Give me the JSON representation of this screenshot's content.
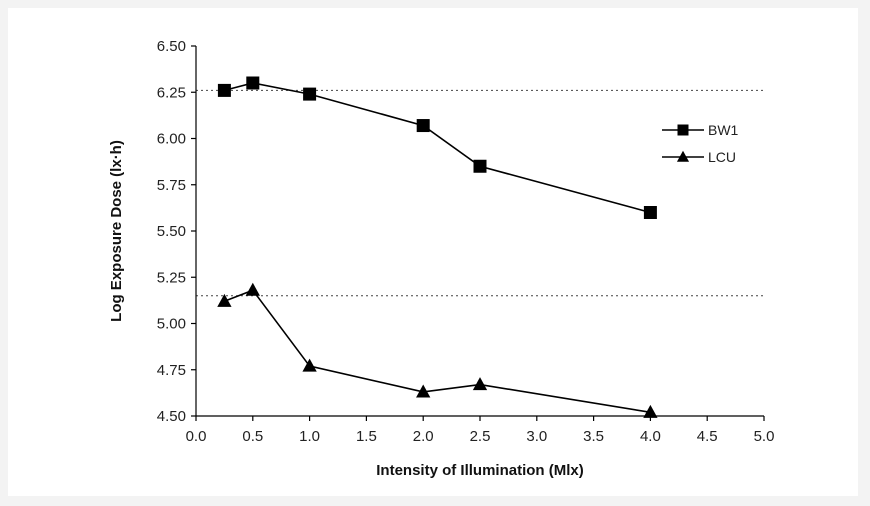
{
  "chart_data": {
    "type": "line",
    "xlabel": "Intensity of Illumination (Mlx)",
    "ylabel": "Log Exposure Dose (lx·h)",
    "xlim": [
      0.0,
      5.0
    ],
    "ylim": [
      4.5,
      6.5
    ],
    "x_ticks": [
      "0.0",
      "0.5",
      "1.0",
      "1.5",
      "2.0",
      "2.5",
      "3.0",
      "3.5",
      "4.0",
      "4.5",
      "5.0"
    ],
    "y_ticks": [
      "4.50",
      "4.75",
      "5.00",
      "5.25",
      "5.50",
      "5.75",
      "6.00",
      "6.25",
      "6.50"
    ],
    "grid": false,
    "legend_position": "right",
    "reference_lines": [
      {
        "y": 6.26
      },
      {
        "y": 5.15
      }
    ],
    "series": [
      {
        "name": "BW1",
        "marker": "square",
        "x": [
          0.25,
          0.5,
          1.0,
          2.0,
          2.5,
          4.0
        ],
        "y": [
          6.26,
          6.3,
          6.24,
          6.07,
          5.85,
          5.6
        ]
      },
      {
        "name": "LCU",
        "marker": "triangle",
        "x": [
          0.25,
          0.5,
          1.0,
          2.0,
          2.5,
          4.0
        ],
        "y": [
          5.12,
          5.18,
          4.77,
          4.63,
          4.67,
          4.52
        ]
      }
    ]
  }
}
